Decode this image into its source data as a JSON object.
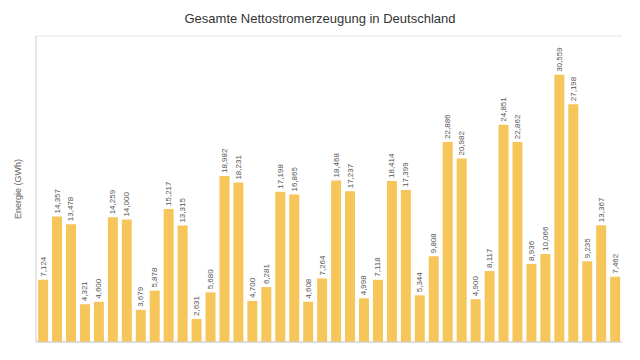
{
  "chart_data": {
    "type": "bar",
    "title": "Gesamte Nettostromerzeugung in Deutschland",
    "y_label": "Energie (GWh)",
    "categories": [
      null,
      null,
      null,
      null,
      null,
      null,
      null,
      null,
      null,
      null,
      null,
      null,
      null,
      null,
      null,
      null,
      null,
      null,
      null,
      null,
      null,
      null,
      null,
      null,
      null,
      null,
      null,
      null,
      null,
      null,
      null,
      null,
      null,
      null,
      null,
      null,
      null,
      null,
      null,
      null,
      null,
      null
    ],
    "values": [
      7124,
      14357,
      13478,
      4321,
      4600,
      14259,
      14000,
      3679,
      5878,
      15217,
      13315,
      2631,
      5680,
      18982,
      18231,
      4700,
      6281,
      17198,
      16865,
      4608,
      7264,
      18468,
      17237,
      4998,
      7118,
      18414,
      17399,
      5344,
      9808,
      22886,
      20982,
      4900,
      8117,
      24851,
      22862,
      8936,
      10066,
      30559,
      27198,
      9235,
      13367,
      7462
    ],
    "value_labels": [
      "7,124",
      "14,357",
      "13,478",
      "4,321",
      "4,600",
      "14,259",
      "14,000",
      "3,679",
      "5,878",
      "15,217",
      "13,315",
      "2,631",
      "5,680",
      "18,982",
      "18,231",
      "4,700",
      "6,281",
      "17,198",
      "16,865",
      "4,608",
      "7,264",
      "18,468",
      "17,237",
      "4,998",
      "7,118",
      "18,414",
      "17,399",
      "5,344",
      "9,808",
      "22,886",
      "20,982",
      "4,900",
      "8,117",
      "24,851",
      "22,862",
      "8,936",
      "10,066",
      "30,559",
      "27,198",
      "9,235",
      "13,367",
      "7,462"
    ],
    "color": "#f7c65a",
    "ylim": [
      0,
      35000
    ],
    "yticks": [
      0,
      5000,
      10000,
      15000,
      20000,
      25000,
      30000,
      35000
    ],
    "grid": true,
    "data_labels": true,
    "tick_labels": false
  }
}
